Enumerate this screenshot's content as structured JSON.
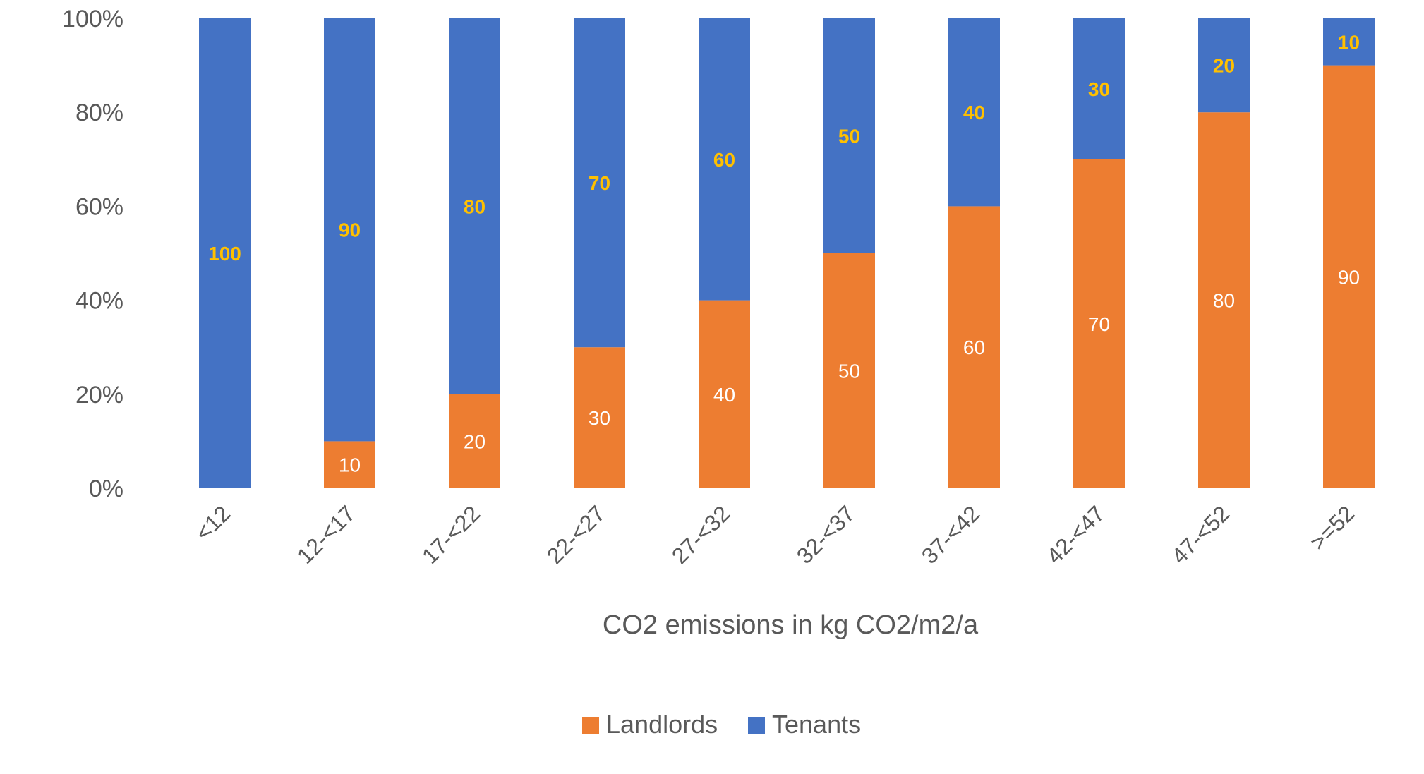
{
  "chart_data": {
    "type": "bar",
    "stacked": "percent",
    "categories": [
      "<12",
      "12-<17",
      "17-<22",
      "22-<27",
      "27-<32",
      "32-<37",
      "37-<42",
      "42-<47",
      "47-<52",
      ">=52"
    ],
    "series": [
      {
        "name": "Landlords",
        "color": "#ED7D31",
        "label_color": "#FFFFFF",
        "values": [
          0,
          10,
          20,
          30,
          40,
          50,
          60,
          70,
          80,
          90
        ]
      },
      {
        "name": "Tenants",
        "color": "#4472C4",
        "label_color": "#FFC000",
        "values": [
          100,
          90,
          80,
          70,
          60,
          50,
          40,
          30,
          20,
          10
        ]
      }
    ],
    "xlabel": "CO2 emissions in kg CO2/m2/a",
    "ylabel": "",
    "ylim": [
      0,
      100
    ],
    "y_ticks": [
      "0%",
      "20%",
      "40%",
      "60%",
      "80%",
      "100%"
    ],
    "y_tick_values": [
      0,
      20,
      40,
      60,
      80,
      100
    ],
    "x_tick_rotation": -45,
    "grid": false,
    "legend": "bottom"
  }
}
